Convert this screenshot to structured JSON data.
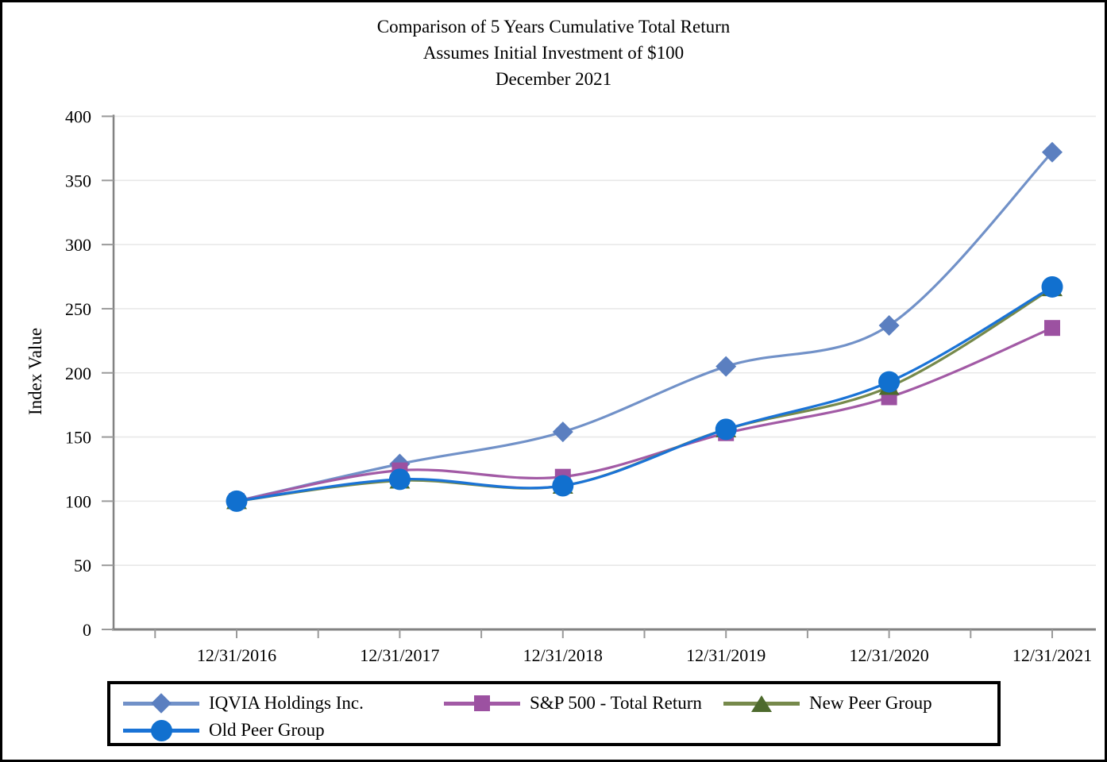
{
  "page": {
    "title_lines": [
      "Comparison of 5 Years Cumulative Total Return",
      "Assumes Initial Investment of $100",
      "December 2021"
    ]
  },
  "chart_data": {
    "type": "line",
    "title": "Comparison of 5 Years Cumulative Total Return",
    "subtitle": "Assumes Initial Investment of $100",
    "period_label": "December 2021",
    "xlabel": "",
    "ylabel": "Index Value",
    "ylim": [
      0,
      400
    ],
    "yticks": [
      0,
      50,
      100,
      150,
      200,
      250,
      300,
      350,
      400
    ],
    "grid": "horizontal-light-gray",
    "legend_position": "bottom-box",
    "line_style": "smooth",
    "categories": [
      "12/31/2016",
      "12/31/2017",
      "12/31/2018",
      "12/31/2019",
      "12/31/2020",
      "12/31/2021"
    ],
    "series": [
      {
        "name": "IQVIA Holdings Inc.",
        "marker": "diamond",
        "line_color": "#7191c8",
        "marker_color": "#5b7fc0",
        "values": [
          100,
          129,
          154,
          205,
          237,
          372
        ]
      },
      {
        "name": "S&P 500 - Total Return",
        "marker": "square",
        "line_color": "#a25aa5",
        "marker_color": "#9c51a1",
        "values": [
          100,
          124,
          119,
          153,
          181,
          235
        ]
      },
      {
        "name": "New Peer Group",
        "marker": "triangle",
        "line_color": "#76894b",
        "marker_color": "#4d6a2d",
        "values": [
          100,
          116,
          112,
          156,
          189,
          266
        ]
      },
      {
        "name": "Old Peer Group",
        "marker": "circle",
        "line_color": "#1a73d6",
        "marker_color": "#1170cf",
        "values": [
          100,
          117,
          112,
          156,
          193,
          267
        ]
      }
    ],
    "axis_color": "#828282",
    "grid_color": "#e8e8e8",
    "tick_color": "#9a9a9a"
  }
}
